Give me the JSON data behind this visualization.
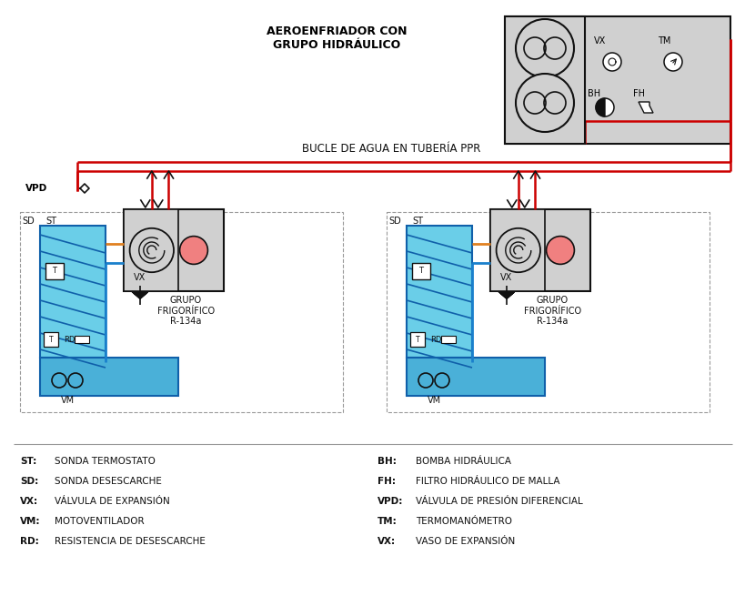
{
  "bg_color": "none",
  "white": "#ffffff",
  "light_gray": "#d0d0d0",
  "gray": "#999999",
  "dark": "#111111",
  "red": "#cc0000",
  "blue": "#1a80cc",
  "dark_blue": "#1060aa",
  "light_blue": "#6acee8",
  "mid_blue": "#4ab0d8",
  "orange": "#e08020",
  "legend_left": [
    [
      "ST:",
      "SONDA TERMOSTATO"
    ],
    [
      "SD:",
      "SONDA DESESCARCHE"
    ],
    [
      "VX:",
      "VÁLVULA DE EXPANSIÓN"
    ],
    [
      "VM:",
      "MOTOVENTILADOR"
    ],
    [
      "RD:",
      "RESISTENCIA DE DESESCARCHE"
    ]
  ],
  "legend_right": [
    [
      "BH:",
      "BOMBA HIDRÁULICA"
    ],
    [
      "FH:",
      "FILTRO HIDRÁULICO DE MALLA"
    ],
    [
      "VPD:",
      "VÁLVULA DE PRESIÓN DIFERENCIAL"
    ],
    [
      "TM:",
      "TERMOMANÓMETRO"
    ],
    [
      "VX:",
      "VASO DE EXPANSIÓN"
    ]
  ],
  "title_aero": "AEROENFRIADOR CON\nGRUPO HIDRÁULICO",
  "title_bucle": "BUCLE DE AGUA EN TUBERÍA PPR",
  "label_grupo": "GRUPO\nFRIGORÍFICO\nR-134a"
}
